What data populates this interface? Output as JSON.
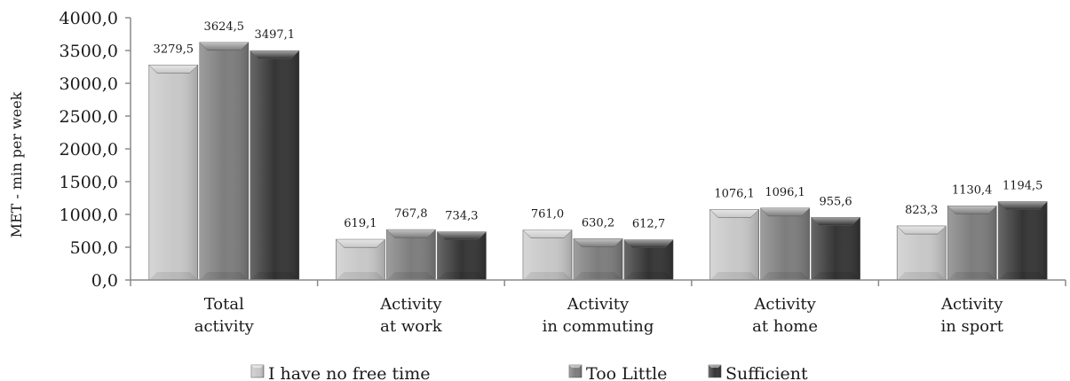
{
  "chart_data": {
    "type": "bar",
    "title": "",
    "ylabel": "MET - min per week",
    "xlabel": "",
    "ylim": [
      0,
      4000
    ],
    "yticks": [
      0,
      500,
      1000,
      1500,
      2000,
      2500,
      3000,
      3500,
      4000
    ],
    "ytick_labels": [
      "0,0",
      "500,0",
      "1000,0",
      "1500,0",
      "2000,0",
      "2500,0",
      "3000,0",
      "3500,0",
      "4000,0"
    ],
    "grid": false,
    "legend_position": "bottom",
    "categories": [
      [
        "Total",
        "activity"
      ],
      [
        "Activity",
        "at work"
      ],
      [
        "Activity",
        "in commuting"
      ],
      [
        "Activity",
        "at home"
      ],
      [
        "Activity",
        "in sport"
      ]
    ],
    "series": [
      {
        "name": "I have no free time",
        "color": "#c8c8c8",
        "values": [
          3279.5,
          619.1,
          761.0,
          1076.1,
          823.3
        ],
        "labels": [
          "3279,5",
          "619,1",
          "761,0",
          "1076,1",
          "823,3"
        ]
      },
      {
        "name": "Too Little",
        "color": "#7d7d7d",
        "values": [
          3624.5,
          767.8,
          630.2,
          1096.1,
          1130.4
        ],
        "labels": [
          "3624,5",
          "767,8",
          "630,2",
          "1096,1",
          "1130,4"
        ]
      },
      {
        "name": "Sufficient",
        "color": "#353535",
        "values": [
          3497.1,
          734.3,
          612.7,
          955.6,
          1194.5
        ],
        "labels": [
          "3497,1",
          "734,3",
          "612,7",
          "955,6",
          "1194,5"
        ]
      }
    ]
  }
}
